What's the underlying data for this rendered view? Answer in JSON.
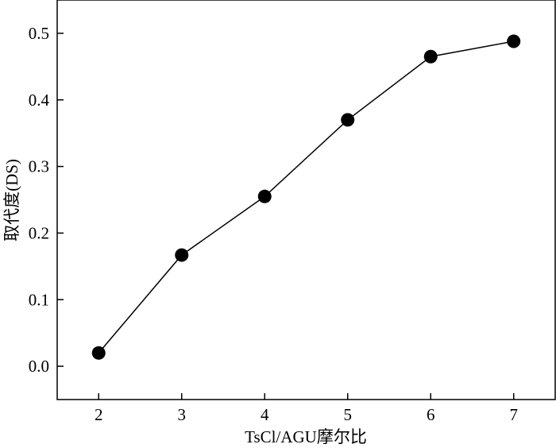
{
  "chart_data": {
    "type": "line",
    "title": "",
    "xlabel": "TsCl/AGU摩尔比",
    "ylabel": "取代度(DS)",
    "x": [
      2,
      3,
      4,
      5,
      6,
      7
    ],
    "series": [
      {
        "values": [
          0.02,
          0.167,
          0.255,
          0.37,
          0.465,
          0.488
        ]
      }
    ],
    "xticks": [
      "2",
      "3",
      "4",
      "5",
      "6",
      "7"
    ],
    "yticks": [
      "0.0",
      "0.1",
      "0.2",
      "0.3",
      "0.4",
      "0.5"
    ],
    "xlim": [
      1.5,
      7.5
    ],
    "ylim": [
      -0.05,
      0.55
    ],
    "grid": false,
    "marker": "filled-circle",
    "line_color": "#000000",
    "marker_color": "#000000"
  }
}
